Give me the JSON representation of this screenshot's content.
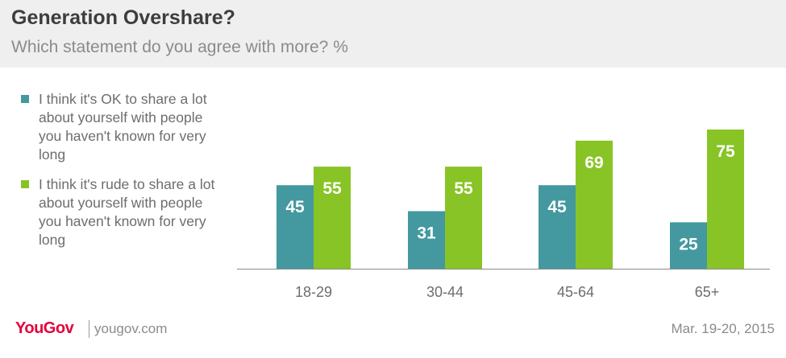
{
  "header": {
    "title": "Generation Overshare?",
    "subtitle": "Which statement do you agree with more? %"
  },
  "legend": [
    {
      "label": "I think it's OK to share a lot about yourself with people you haven't known for very long",
      "color": "#43999f"
    },
    {
      "label": "I think it's rude to share a lot about yourself with people you haven't known for very long",
      "color": "#88c425"
    }
  ],
  "chart_data": {
    "type": "bar",
    "categories": [
      "18-29",
      "30-44",
      "45-64",
      "65+"
    ],
    "series": [
      {
        "values": [
          45,
          31,
          45,
          25
        ],
        "color": "#43999f"
      },
      {
        "values": [
          55,
          55,
          69,
          75
        ],
        "color": "#88c425"
      }
    ],
    "ylim": [
      0,
      80
    ],
    "grid": false
  },
  "footer": {
    "logo": "YouGov",
    "url": "yougov.com",
    "date": "Mar. 19-20, 2015"
  }
}
